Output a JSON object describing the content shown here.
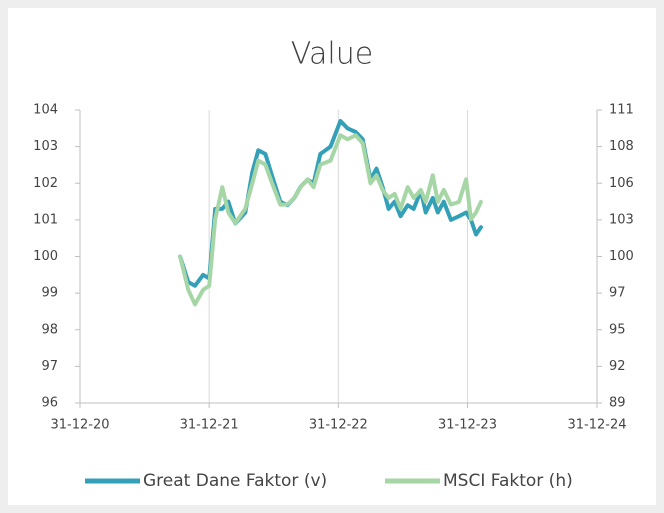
{
  "chart_data": {
    "type": "line",
    "title": "Value",
    "x": [
      "10-10-21",
      "02-11-21",
      "21-11-21",
      "14-12-21",
      "31-12-21",
      "17-01-22",
      "06-02-22",
      "23-02-22",
      "15-03-22",
      "12-04-22",
      "02-05-22",
      "19-05-22",
      "08-06-22",
      "27-06-22",
      "20-07-22",
      "09-08-22",
      "29-08-22",
      "15-09-22",
      "05-10-22",
      "22-10-22",
      "10-11-22",
      "09-12-22",
      "06-01-23",
      "26-01-23",
      "18-02-23",
      "10-03-23",
      "01-04-23",
      "18-04-23",
      "05-05-23",
      "22-05-23",
      "08-06-23",
      "25-06-23",
      "15-07-23",
      "01-08-23",
      "21-08-23",
      "04-09-23",
      "24-09-23",
      "08-10-23",
      "25-10-23",
      "14-11-23",
      "07-12-23",
      "27-12-23",
      "10-01-24",
      "24-01-24",
      "07-02-24"
    ],
    "series": [
      {
        "name": "Great Dane Faktor (v)",
        "color": "#33a0b8",
        "values": [
          100,
          99.3,
          99.2,
          99.5,
          99.4,
          101.3,
          101.3,
          101.5,
          100.9,
          101.2,
          102.3,
          102.9,
          102.8,
          102.2,
          101.5,
          101.4,
          101.6,
          101.9,
          102.1,
          102.0,
          102.8,
          103.0,
          103.7,
          103.5,
          103.4,
          103.2,
          102.1,
          102.4,
          101.9,
          101.3,
          101.5,
          101.1,
          101.4,
          101.3,
          101.8,
          101.2,
          101.6,
          101.2,
          101.5,
          101.0,
          101.1,
          101.2,
          101.0,
          100.6,
          100.8
        ]
      },
      {
        "name": "MSCI Faktor (h)",
        "color": "#a6d6a6",
        "axis": "y2",
        "values": [
          100,
          97.5,
          96.4,
          97.5,
          97.8,
          102.8,
          105.2,
          103.3,
          102.5,
          103.6,
          105.5,
          107.2,
          106.9,
          105.5,
          103.9,
          103.9,
          104.4,
          105.2,
          105.8,
          105.2,
          106.9,
          107.2,
          109.1,
          108.8,
          109.1,
          108.5,
          105.5,
          106.1,
          105.0,
          104.4,
          104.7,
          103.6,
          105.2,
          104.4,
          105.0,
          104.1,
          106.1,
          104.1,
          105.0,
          103.9,
          104.1,
          105.8,
          102.8,
          103.3,
          104.1
        ]
      }
    ],
    "xlim": [
      "31-12-20",
      "31-12-24"
    ],
    "xticks": [
      "31-12-20",
      "31-12-21",
      "31-12-22",
      "31-12-23",
      "31-12-24"
    ],
    "ylim": [
      96,
      104
    ],
    "yticks": [
      96,
      97,
      98,
      99,
      100,
      101,
      102,
      103,
      104
    ],
    "y2lim": [
      89,
      111
    ],
    "y2ticks": [
      89,
      {
        "value": 91.75,
        "label": "92"
      },
      {
        "value": 94.5,
        "label": "95"
      },
      {
        "value": 97.25,
        "label": "97"
      },
      100,
      {
        "value": 102.75,
        "label": "103"
      },
      {
        "value": 105.5,
        "label": "106"
      },
      {
        "value": 108.25,
        "label": "108"
      },
      111
    ],
    "grid": "x",
    "legend": "bottom"
  }
}
